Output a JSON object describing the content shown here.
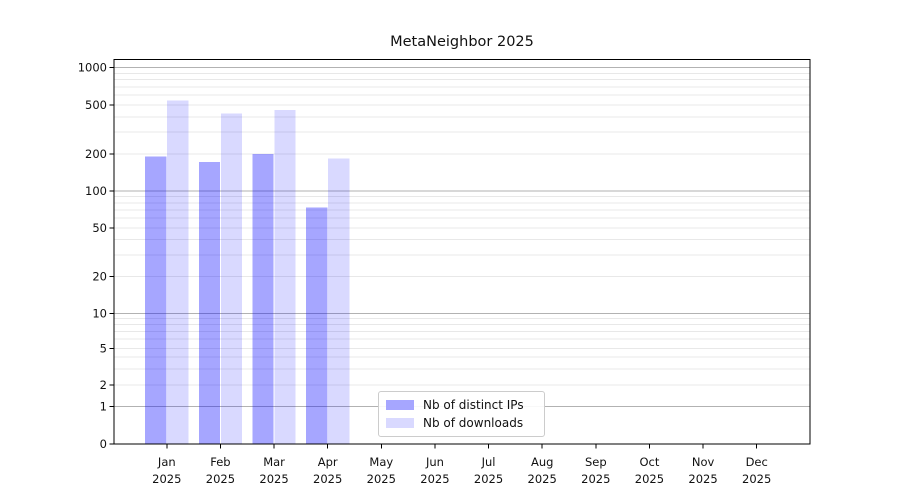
{
  "figure": {
    "title": "MetaNeighbor 2025"
  },
  "chart_data": {
    "type": "bar",
    "title": "MetaNeighbor 2025",
    "categories": [
      "Jan",
      "Feb",
      "Mar",
      "Apr",
      "May",
      "Jun",
      "Jul",
      "Aug",
      "Sep",
      "Oct",
      "Nov",
      "Dec"
    ],
    "category_year": "2025",
    "series": [
      {
        "name": "Nb of distinct IPs",
        "color": "#0000ff",
        "alpha": 0.35,
        "swatch_hex": "#a6a6ff",
        "values": [
          190,
          172,
          200,
          73,
          0,
          0,
          0,
          0,
          0,
          0,
          0,
          0
        ]
      },
      {
        "name": "Nb of downloads",
        "color": "#0000ff",
        "alpha": 0.15,
        "swatch_hex": "#d9d9ff",
        "values": [
          540,
          425,
          452,
          183,
          0,
          0,
          0,
          0,
          0,
          0,
          0,
          0
        ]
      }
    ],
    "yscale": "symlog",
    "yticks": [
      0,
      1,
      2,
      5,
      10,
      20,
      50,
      100,
      200,
      500,
      1000
    ],
    "ylim": [
      0,
      1200
    ],
    "grid": "horizontal major+minor",
    "legend_position": "lower center",
    "colors": {
      "major_gridline": "#b2b2b2",
      "minor_gridline": "#e8e8e8",
      "axis": "#000000",
      "text": "#111111"
    }
  }
}
